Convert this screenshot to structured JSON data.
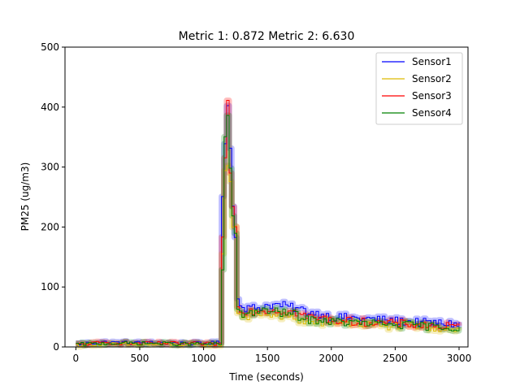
{
  "chart_data": {
    "type": "line",
    "title": "Metric 1: 0.872   Metric 2: 6.630",
    "xlabel": "Time (seconds)",
    "ylabel": "PM25 (ug/m3)",
    "xlim": [
      -85,
      3070
    ],
    "ylim": [
      0,
      500
    ],
    "xticks": [
      0,
      500,
      1000,
      1500,
      2000,
      2500,
      3000
    ],
    "yticks": [
      0,
      100,
      200,
      300,
      400,
      500
    ],
    "legend_position": "top-right",
    "grid": false,
    "step_seconds": 20,
    "series": [
      {
        "name": "Sensor1",
        "color": "#0000ff",
        "keypoints": [
          [
            0,
            5
          ],
          [
            200,
            8
          ],
          [
            400,
            7
          ],
          [
            600,
            7
          ],
          [
            800,
            6
          ],
          [
            1000,
            6
          ],
          [
            1120,
            7
          ],
          [
            1140,
            260
          ],
          [
            1160,
            350
          ],
          [
            1180,
            400
          ],
          [
            1200,
            330
          ],
          [
            1220,
            240
          ],
          [
            1240,
            180
          ],
          [
            1260,
            85
          ],
          [
            1300,
            65
          ],
          [
            1400,
            65
          ],
          [
            1500,
            70
          ],
          [
            1600,
            70
          ],
          [
            1700,
            65
          ],
          [
            1800,
            60
          ],
          [
            1900,
            55
          ],
          [
            2000,
            50
          ],
          [
            2200,
            48
          ],
          [
            2400,
            45
          ],
          [
            2600,
            42
          ],
          [
            2800,
            40
          ],
          [
            3000,
            38
          ]
        ]
      },
      {
        "name": "Sensor2",
        "color": "#ddbb00",
        "keypoints": [
          [
            0,
            3
          ],
          [
            200,
            5
          ],
          [
            400,
            4
          ],
          [
            600,
            4
          ],
          [
            800,
            4
          ],
          [
            1000,
            4
          ],
          [
            1120,
            4
          ],
          [
            1140,
            150
          ],
          [
            1160,
            290
          ],
          [
            1180,
            310
          ],
          [
            1200,
            280
          ],
          [
            1220,
            200
          ],
          [
            1240,
            200
          ],
          [
            1260,
            60
          ],
          [
            1300,
            50
          ],
          [
            1400,
            55
          ],
          [
            1500,
            55
          ],
          [
            1600,
            50
          ],
          [
            1700,
            48
          ],
          [
            1800,
            40
          ],
          [
            1900,
            40
          ],
          [
            2000,
            42
          ],
          [
            2200,
            38
          ],
          [
            2400,
            35
          ],
          [
            2600,
            35
          ],
          [
            2800,
            32
          ],
          [
            3000,
            30
          ]
        ]
      },
      {
        "name": "Sensor3",
        "color": "#ff0000",
        "keypoints": [
          [
            0,
            4
          ],
          [
            200,
            7
          ],
          [
            400,
            6
          ],
          [
            600,
            6
          ],
          [
            800,
            6
          ],
          [
            1000,
            5
          ],
          [
            1120,
            5
          ],
          [
            1140,
            180
          ],
          [
            1160,
            320
          ],
          [
            1180,
            405
          ],
          [
            1200,
            300
          ],
          [
            1220,
            230
          ],
          [
            1240,
            200
          ],
          [
            1260,
            70
          ],
          [
            1300,
            60
          ],
          [
            1400,
            60
          ],
          [
            1500,
            62
          ],
          [
            1600,
            60
          ],
          [
            1700,
            58
          ],
          [
            1800,
            50
          ],
          [
            1900,
            48
          ],
          [
            2000,
            45
          ],
          [
            2200,
            42
          ],
          [
            2400,
            40
          ],
          [
            2600,
            38
          ],
          [
            2800,
            35
          ],
          [
            3000,
            33
          ]
        ]
      },
      {
        "name": "Sensor4",
        "color": "#008000",
        "keypoints": [
          [
            0,
            4
          ],
          [
            200,
            6
          ],
          [
            400,
            6
          ],
          [
            600,
            6
          ],
          [
            800,
            5
          ],
          [
            1000,
            5
          ],
          [
            1120,
            5
          ],
          [
            1140,
            130
          ],
          [
            1160,
            340
          ],
          [
            1180,
            390
          ],
          [
            1200,
            290
          ],
          [
            1220,
            210
          ],
          [
            1240,
            190
          ],
          [
            1260,
            65
          ],
          [
            1300,
            55
          ],
          [
            1400,
            58
          ],
          [
            1500,
            60
          ],
          [
            1600,
            57
          ],
          [
            1700,
            55
          ],
          [
            1800,
            45
          ],
          [
            1900,
            45
          ],
          [
            2000,
            42
          ],
          [
            2200,
            40
          ],
          [
            2400,
            38
          ],
          [
            2600,
            36
          ],
          [
            2800,
            34
          ],
          [
            3000,
            32
          ]
        ]
      }
    ]
  }
}
